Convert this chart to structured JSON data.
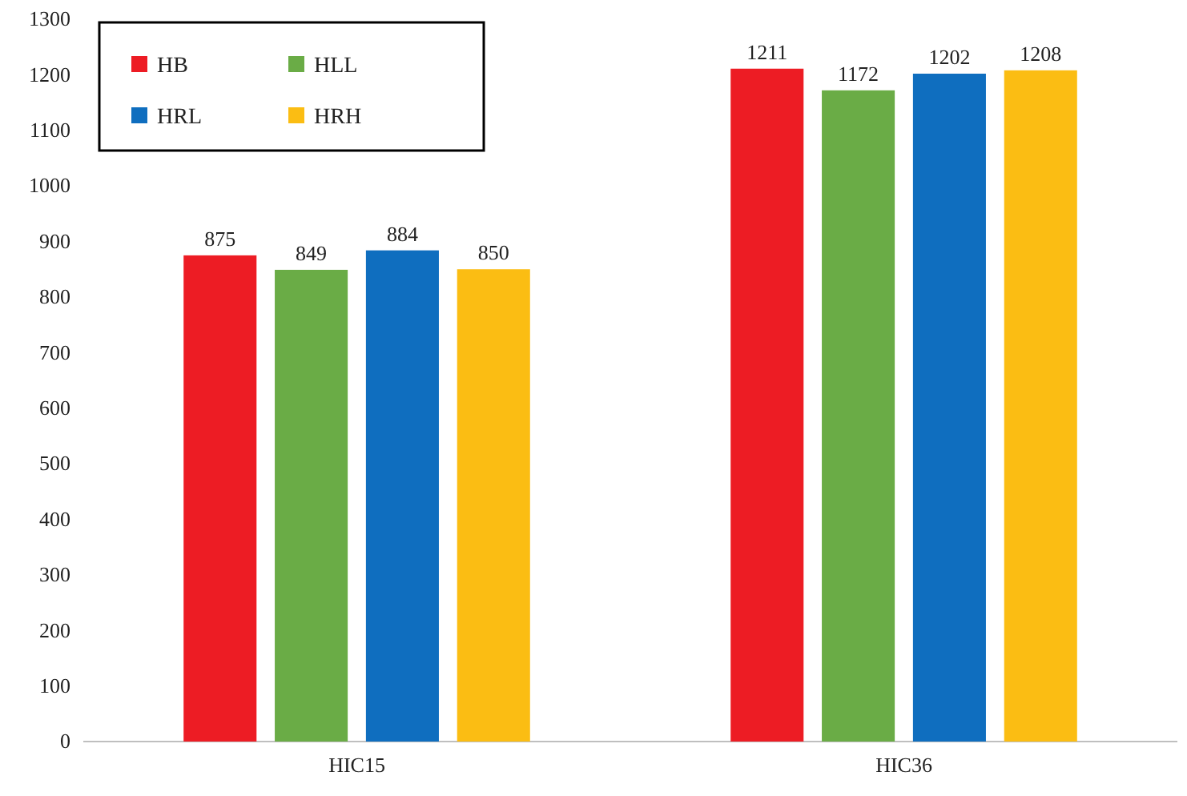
{
  "chart_data": {
    "type": "bar",
    "categories": [
      "HIC15",
      "HIC36"
    ],
    "series": [
      {
        "name": "HB",
        "color": "#ed1c24",
        "values": [
          875,
          1211
        ]
      },
      {
        "name": "HLL",
        "color": "#6aac46",
        "values": [
          849,
          1172
        ]
      },
      {
        "name": "HRL",
        "color": "#0f6ebf",
        "values": [
          884,
          1202
        ]
      },
      {
        "name": "HRH",
        "color": "#fbbd13",
        "values": [
          850,
          1208
        ]
      }
    ],
    "ylim": [
      0,
      1300
    ],
    "yticks": [
      0,
      100,
      200,
      300,
      400,
      500,
      600,
      700,
      800,
      900,
      1000,
      1100,
      1200,
      1300
    ],
    "data_labels": true,
    "legend": "top left",
    "grid": false
  }
}
